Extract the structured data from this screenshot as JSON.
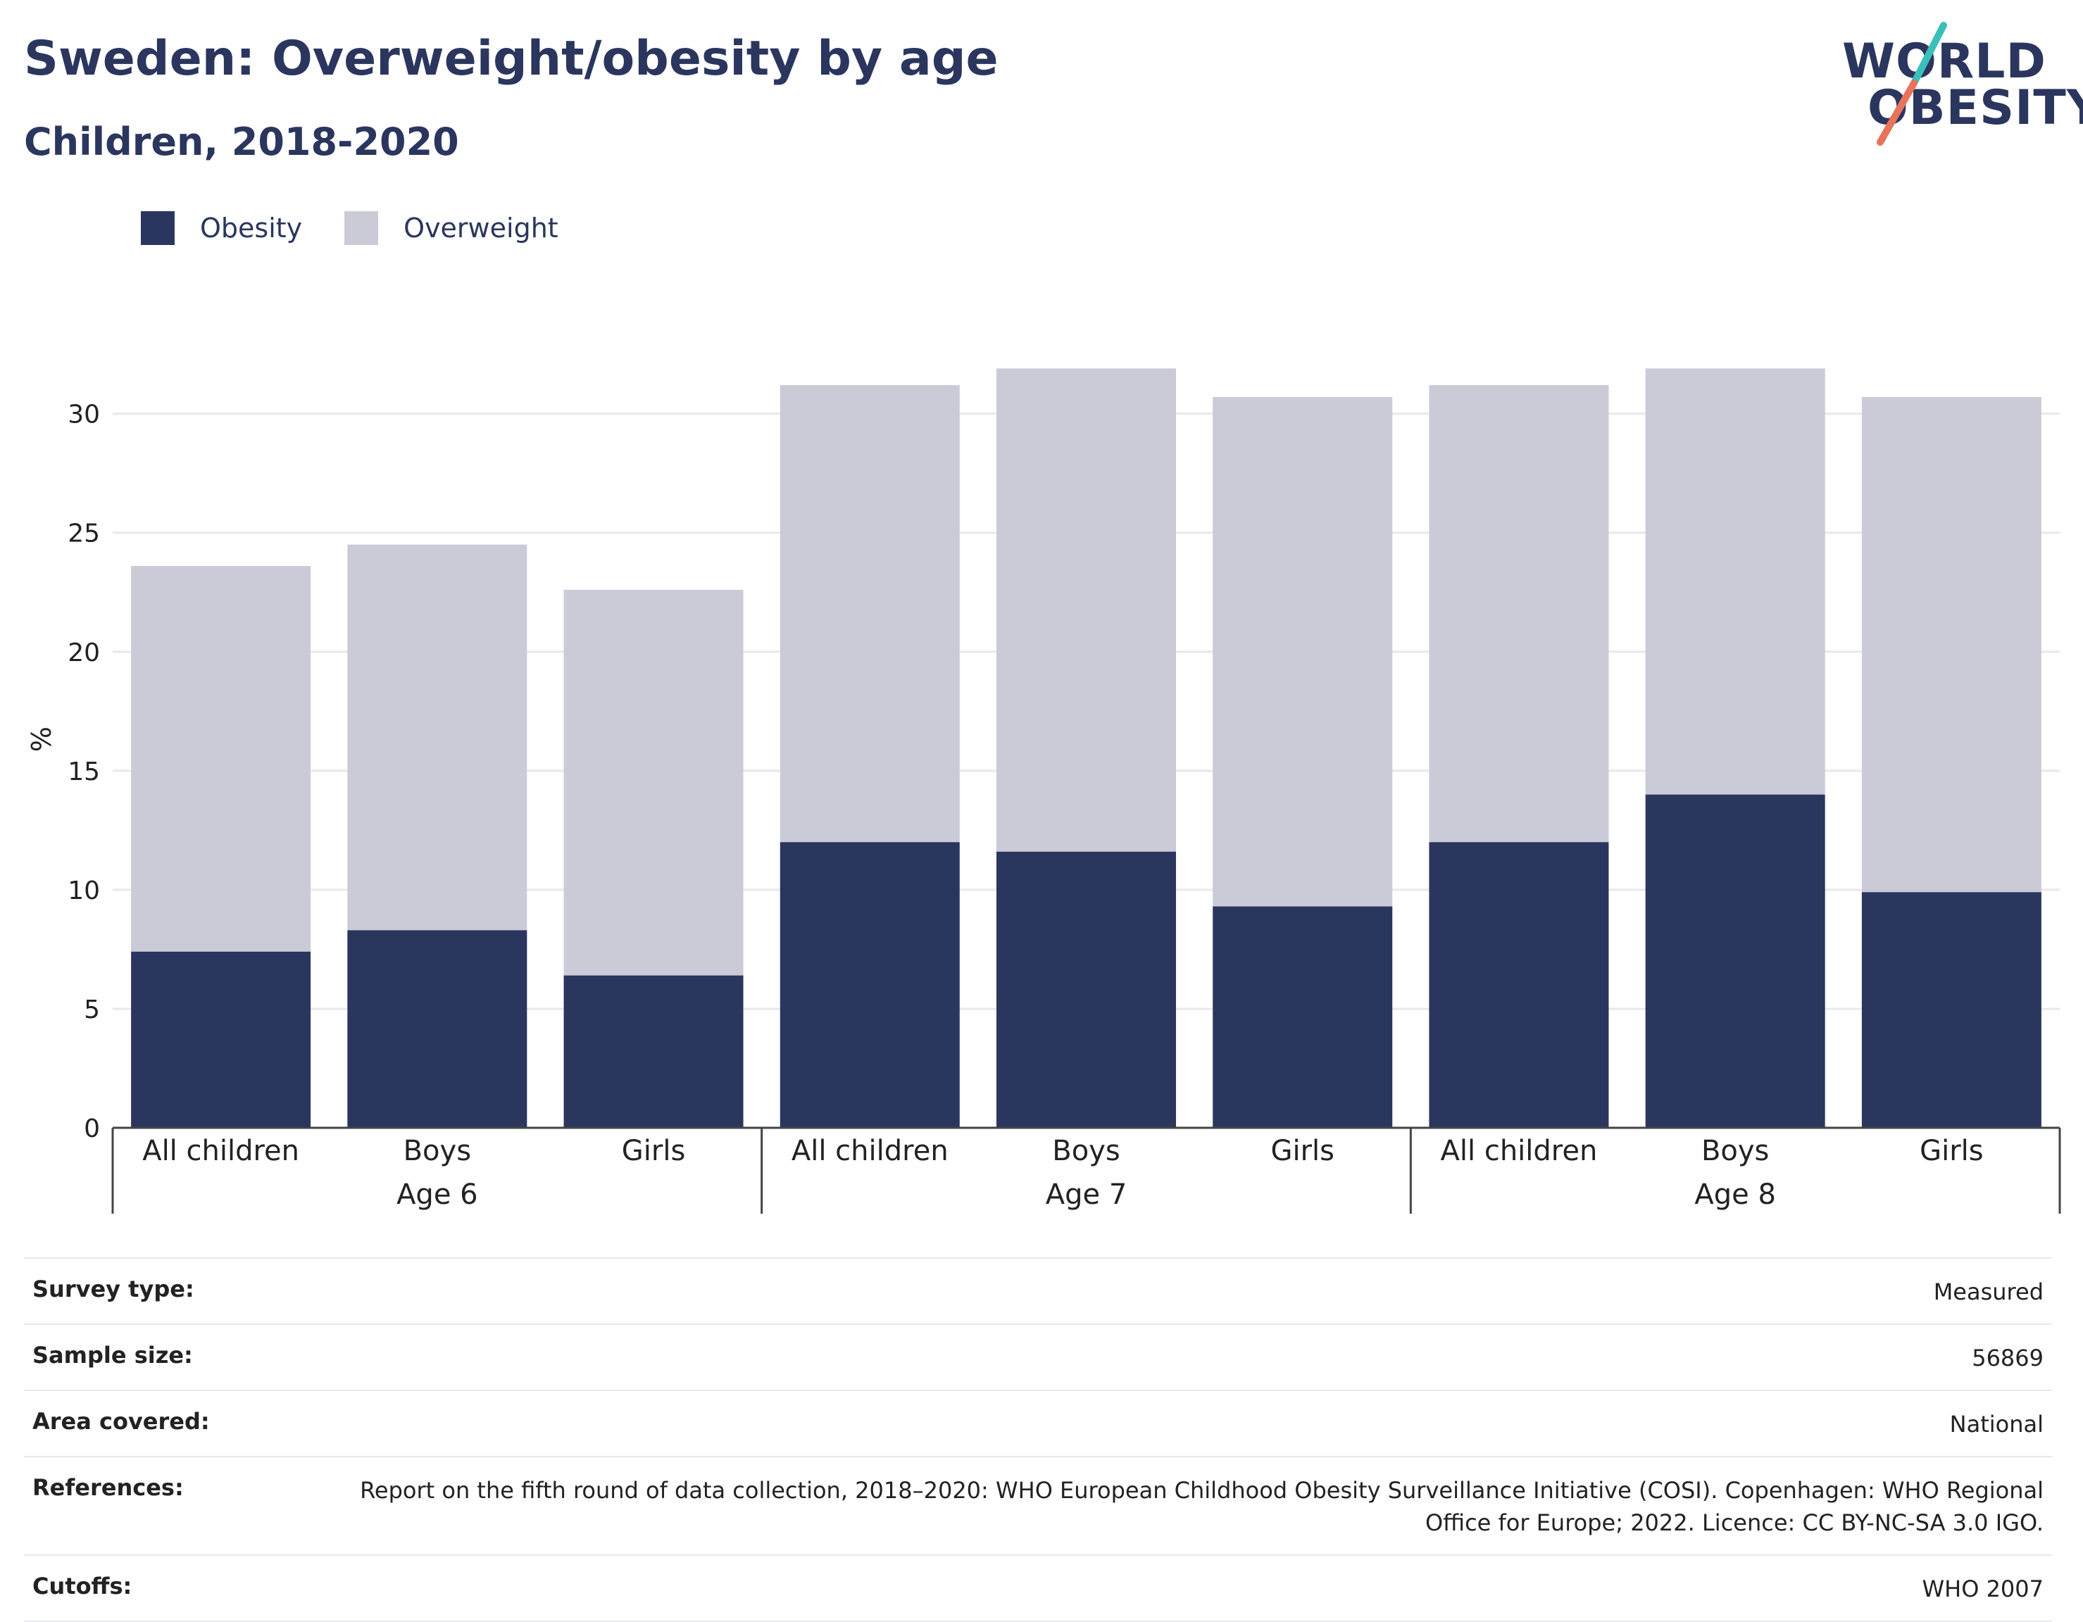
{
  "header": {
    "title": "Sweden: Overweight/obesity by age",
    "subtitle": "Children, 2018-2020"
  },
  "logo": {
    "line1": "WORLD",
    "line2": "OBESITY",
    "accent_teal": "#3bbfb9",
    "accent_coral": "#e8735a"
  },
  "colors": {
    "obesity": "#2b365f",
    "overweight": "#cacbd7",
    "gridline": "#e8e8ee",
    "axis": "#444444"
  },
  "chart_data": {
    "type": "bar",
    "stacked": true,
    "ylabel": "%",
    "ylim": [
      0,
      32
    ],
    "yticks": [
      0,
      5,
      10,
      15,
      20,
      25,
      30
    ],
    "grid": true,
    "legend_position": "top-left",
    "groups": [
      {
        "label": "Age 6",
        "categories": [
          "All children",
          "Boys",
          "Girls"
        ]
      },
      {
        "label": "Age 7",
        "categories": [
          "All children",
          "Boys",
          "Girls"
        ]
      },
      {
        "label": "Age 8",
        "categories": [
          "All children",
          "Boys",
          "Girls"
        ]
      }
    ],
    "series": [
      {
        "name": "Obesity",
        "values": [
          7.4,
          8.3,
          6.4,
          12.0,
          11.6,
          9.3,
          12.0,
          14.0,
          9.9
        ]
      },
      {
        "name": "Overweight",
        "values": [
          16.2,
          16.2,
          16.2,
          19.2,
          20.3,
          21.4,
          19.2,
          17.9,
          20.8
        ]
      }
    ]
  },
  "info": {
    "rows": [
      {
        "label": "Survey type:",
        "value": "Measured"
      },
      {
        "label": "Sample size:",
        "value": "56869"
      },
      {
        "label": "Area covered:",
        "value": "National"
      },
      {
        "label": "References:",
        "value": "Report on the fifth round of data collection, 2018–2020: WHO European Childhood Obesity Surveillance Initiative (COSI). Copenhagen: WHO Regional Office for Europe; 2022. Licence: CC BY-NC-SA 3.0 IGO."
      },
      {
        "label": "Cutoffs:",
        "value": "WHO 2007"
      }
    ]
  }
}
